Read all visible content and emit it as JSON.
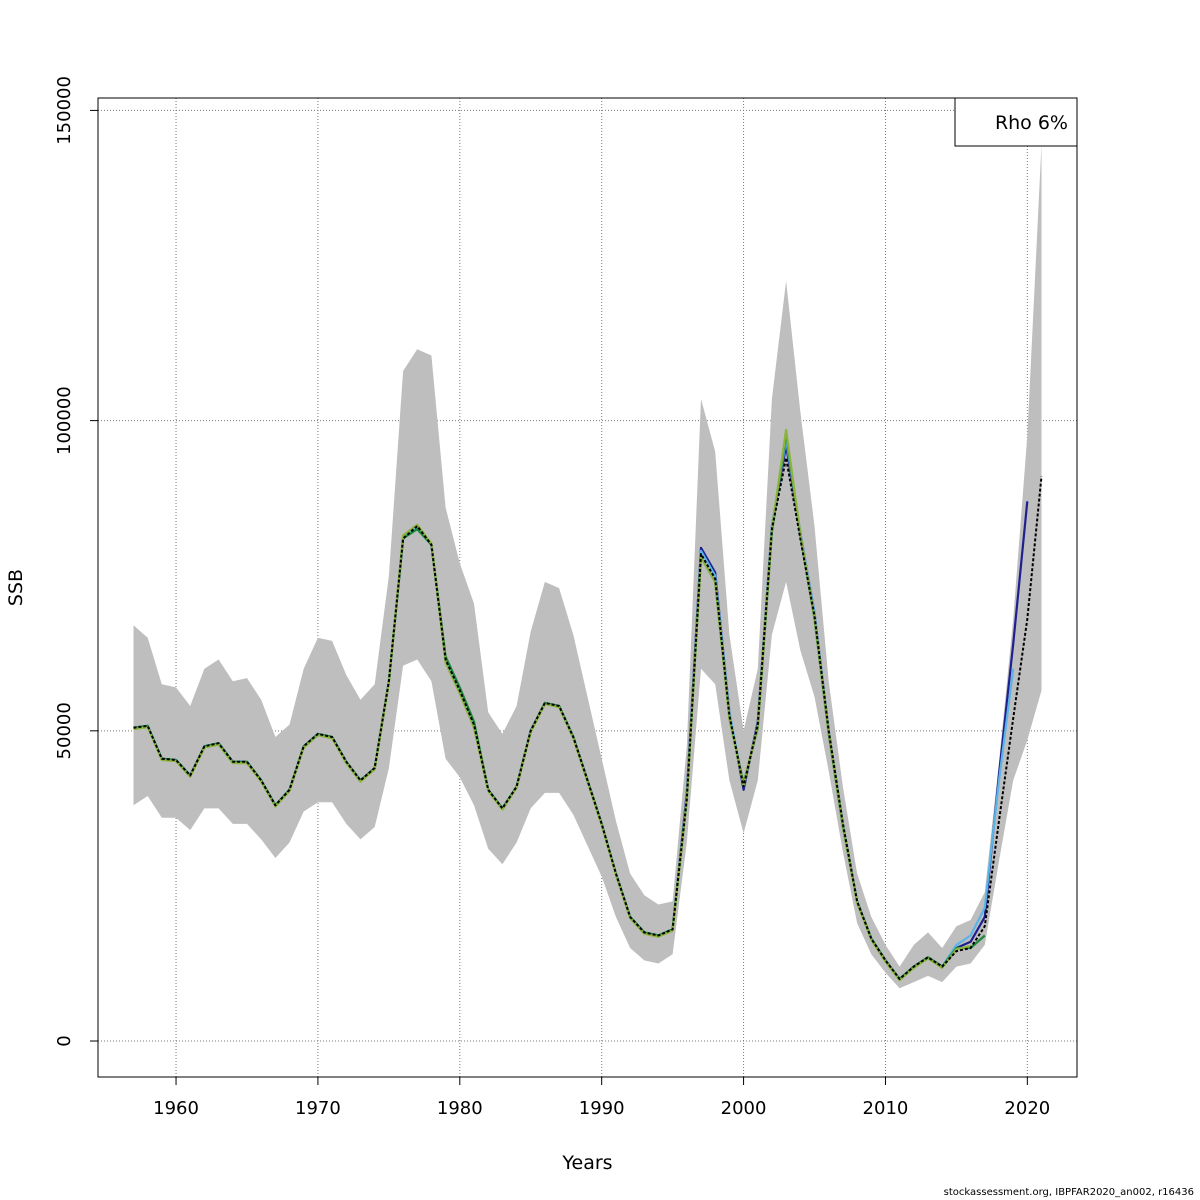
{
  "chart_data": {
    "type": "line",
    "title": "",
    "xlabel": "Years",
    "ylabel": "SSB",
    "xlim": [
      1954.5,
      2023.5
    ],
    "ylim": [
      -5800,
      152000
    ],
    "xticks": [
      1960,
      1970,
      1980,
      1990,
      2000,
      2010,
      2020
    ],
    "yticks": [
      0,
      50000,
      100000,
      150000
    ],
    "grid": true,
    "legend": {
      "position": "top-right",
      "text": "Rho 6%"
    },
    "band": {
      "x": [
        1957,
        1958,
        1959,
        1960,
        1961,
        1962,
        1963,
        1964,
        1965,
        1966,
        1967,
        1968,
        1969,
        1970,
        1971,
        1972,
        1973,
        1974,
        1975,
        1976,
        1977,
        1978,
        1979,
        1980,
        1981,
        1982,
        1983,
        1984,
        1985,
        1986,
        1987,
        1988,
        1989,
        1990,
        1991,
        1992,
        1993,
        1994,
        1995,
        1996,
        1997,
        1998,
        1999,
        2000,
        2001,
        2002,
        2003,
        2004,
        2005,
        2006,
        2007,
        2008,
        2009,
        2010,
        2011,
        2012,
        2013,
        2014,
        2015,
        2016,
        2017,
        2018,
        2019,
        2020,
        2021
      ],
      "upper": [
        67000,
        65000,
        57500,
        57000,
        54000,
        60000,
        61500,
        58000,
        58500,
        55000,
        49000,
        51000,
        60000,
        65000,
        64500,
        59000,
        55000,
        57500,
        75000,
        108000,
        111500,
        110500,
        86000,
        77000,
        70500,
        53000,
        49500,
        54000,
        66000,
        74000,
        73000,
        65500,
        55500,
        45500,
        35500,
        27000,
        23500,
        22000,
        22500,
        47500,
        103500,
        95000,
        65500,
        50000,
        60000,
        103500,
        122500,
        101500,
        83000,
        58000,
        41000,
        27000,
        20000,
        15500,
        12000,
        15500,
        17500,
        15000,
        18500,
        19500,
        24000,
        45000,
        68000,
        97500,
        144500
      ],
      "lower": [
        38000,
        39500,
        36000,
        36000,
        34000,
        37500,
        37500,
        35000,
        35000,
        32500,
        29500,
        32000,
        37000,
        38500,
        38500,
        35000,
        32500,
        34500,
        44000,
        60500,
        61500,
        58000,
        45500,
        42500,
        38000,
        31000,
        28500,
        32000,
        37500,
        40000,
        40000,
        36500,
        31500,
        26500,
        20000,
        15000,
        13000,
        12500,
        14000,
        32000,
        60000,
        57500,
        42000,
        33500,
        42000,
        65500,
        74000,
        63000,
        55500,
        43500,
        30500,
        19000,
        14000,
        11000,
        8500,
        9500,
        10500,
        9500,
        12000,
        12500,
        15500,
        29000,
        42000,
        48500,
        56500
      ]
    },
    "series": [
      {
        "name": "",
        "color": "#000000",
        "dashed": true,
        "x": [
          1957,
          1958,
          1959,
          1960,
          1961,
          1962,
          1963,
          1964,
          1965,
          1966,
          1967,
          1968,
          1969,
          1970,
          1971,
          1972,
          1973,
          1974,
          1975,
          1976,
          1977,
          1978,
          1979,
          1980,
          1981,
          1982,
          1983,
          1984,
          1985,
          1986,
          1987,
          1988,
          1989,
          1990,
          1991,
          1992,
          1993,
          1994,
          1995,
          1996,
          1997,
          1998,
          1999,
          2000,
          2001,
          2002,
          2003,
          2004,
          2005,
          2006,
          2007,
          2008,
          2009,
          2010,
          2011,
          2012,
          2013,
          2014,
          2015,
          2016,
          2017,
          2018,
          2019,
          2020,
          2021
        ],
        "y": [
          50500,
          50800,
          45500,
          45300,
          42800,
          47500,
          48000,
          45000,
          45000,
          42000,
          38000,
          40500,
          47500,
          49500,
          49000,
          45000,
          42000,
          44000,
          58000,
          81000,
          83000,
          80000,
          61500,
          56500,
          51000,
          40500,
          37500,
          41000,
          50000,
          54500,
          54000,
          49000,
          42000,
          35000,
          27000,
          20000,
          17500,
          17000,
          18000,
          39000,
          78500,
          74500,
          52500,
          41000,
          51000,
          82500,
          94000,
          81000,
          68500,
          50000,
          35000,
          22500,
          16500,
          13000,
          10000,
          12000,
          13500,
          12000,
          14500,
          15000,
          18500,
          35500,
          52000,
          68000,
          91000
        ]
      },
      {
        "name": "",
        "color": "#1f1f8f",
        "dashed": false,
        "x": [
          1957,
          1958,
          1959,
          1960,
          1961,
          1962,
          1963,
          1964,
          1965,
          1966,
          1967,
          1968,
          1969,
          1970,
          1971,
          1972,
          1973,
          1974,
          1975,
          1976,
          1977,
          1978,
          1979,
          1980,
          1981,
          1982,
          1983,
          1984,
          1985,
          1986,
          1987,
          1988,
          1989,
          1990,
          1991,
          1992,
          1993,
          1994,
          1995,
          1996,
          1997,
          1998,
          1999,
          2000,
          2001,
          2002,
          2003,
          2004,
          2005,
          2006,
          2007,
          2008,
          2009,
          2010,
          2011,
          2012,
          2013,
          2014,
          2015,
          2016,
          2017,
          2018,
          2019,
          2020
        ],
        "y": [
          50500,
          50800,
          45500,
          45300,
          42800,
          47500,
          48000,
          45000,
          45000,
          42000,
          38000,
          40500,
          47500,
          49500,
          49000,
          45000,
          42000,
          44000,
          58000,
          81000,
          83000,
          80000,
          61500,
          56500,
          51000,
          40500,
          37500,
          41000,
          50000,
          54500,
          54000,
          49000,
          42000,
          35000,
          27000,
          20000,
          17500,
          17000,
          18000,
          40000,
          79500,
          75500,
          53000,
          40500,
          51500,
          83000,
          96000,
          82000,
          69000,
          50000,
          35000,
          22500,
          16500,
          13000,
          10000,
          12000,
          13500,
          12000,
          15000,
          16000,
          20000,
          43000,
          64000,
          87000
        ]
      },
      {
        "name": "",
        "color": "#5ab4e8",
        "dashed": false,
        "x": [
          1957,
          1958,
          1959,
          1960,
          1961,
          1962,
          1963,
          1964,
          1965,
          1966,
          1967,
          1968,
          1969,
          1970,
          1971,
          1972,
          1973,
          1974,
          1975,
          1976,
          1977,
          1978,
          1979,
          1980,
          1981,
          1982,
          1983,
          1984,
          1985,
          1986,
          1987,
          1988,
          1989,
          1990,
          1991,
          1992,
          1993,
          1994,
          1995,
          1996,
          1997,
          1998,
          1999,
          2000,
          2001,
          2002,
          2003,
          2004,
          2005,
          2006,
          2007,
          2008,
          2009,
          2010,
          2011,
          2012,
          2013,
          2014,
          2015,
          2016,
          2017,
          2018,
          2019
        ],
        "y": [
          50500,
          50800,
          45500,
          45300,
          42800,
          47500,
          48000,
          45000,
          45000,
          42000,
          38000,
          40500,
          47500,
          49500,
          49000,
          45000,
          42000,
          44000,
          58000,
          81000,
          83000,
          80000,
          61500,
          56500,
          51000,
          40500,
          37500,
          41000,
          50000,
          54500,
          54000,
          49000,
          42000,
          35000,
          27000,
          20000,
          17500,
          17000,
          18000,
          39500,
          79000,
          75000,
          53000,
          41000,
          51000,
          83000,
          97000,
          82000,
          69000,
          50000,
          35000,
          22500,
          16500,
          13000,
          10000,
          12000,
          13500,
          12000,
          15500,
          17000,
          21500,
          42000,
          60000
        ]
      },
      {
        "name": "",
        "color": "#1a8a3a",
        "dashed": false,
        "x": [
          1957,
          1958,
          1959,
          1960,
          1961,
          1962,
          1963,
          1964,
          1965,
          1966,
          1967,
          1968,
          1969,
          1970,
          1971,
          1972,
          1973,
          1974,
          1975,
          1976,
          1977,
          1978,
          1979,
          1980,
          1981,
          1982,
          1983,
          1984,
          1985,
          1986,
          1987,
          1988,
          1989,
          1990,
          1991,
          1992,
          1993,
          1994,
          1995,
          1996,
          1997,
          1998,
          1999,
          2000,
          2001,
          2002,
          2003,
          2004,
          2005,
          2006,
          2007,
          2008,
          2009,
          2010,
          2011,
          2012,
          2013,
          2014,
          2015,
          2016,
          2017
        ],
        "y": [
          50500,
          50800,
          45500,
          45300,
          42800,
          47500,
          48000,
          45000,
          45000,
          42000,
          38000,
          40500,
          47500,
          49500,
          49000,
          45000,
          42000,
          44000,
          58000,
          81000,
          82500,
          80000,
          62000,
          57000,
          51500,
          40500,
          37500,
          41000,
          50000,
          54500,
          54000,
          49000,
          42000,
          35000,
          27000,
          20000,
          17500,
          17000,
          18000,
          39000,
          78000,
          74000,
          52000,
          41500,
          50500,
          82000,
          98000,
          81500,
          68000,
          49500,
          34500,
          22500,
          16500,
          13000,
          10000,
          12000,
          13500,
          12000,
          15000,
          15000,
          17000
        ]
      },
      {
        "name": "",
        "color": "#8cb33a",
        "dashed": false,
        "x": [
          1957,
          1958,
          1959,
          1960,
          1961,
          1962,
          1963,
          1964,
          1965,
          1966,
          1967,
          1968,
          1969,
          1970,
          1971,
          1972,
          1973,
          1974,
          1975,
          1976,
          1977,
          1978,
          1979,
          1980,
          1981,
          1982,
          1983,
          1984,
          1985,
          1986,
          1987,
          1988,
          1989,
          1990,
          1991,
          1992,
          1993,
          1994,
          1995,
          1996,
          1997,
          1998,
          1999,
          2000,
          2001,
          2002,
          2003,
          2004,
          2005,
          2006,
          2007,
          2008,
          2009,
          2010,
          2011,
          2012,
          2013,
          2014,
          2015,
          2016
        ],
        "y": [
          50300,
          50600,
          45300,
          45100,
          42600,
          47300,
          47800,
          44800,
          44800,
          41800,
          37800,
          40300,
          47300,
          49300,
          48800,
          44800,
          41800,
          43800,
          57800,
          81500,
          83200,
          80200,
          61000,
          56000,
          50500,
          40300,
          37300,
          40800,
          49800,
          54300,
          53800,
          48800,
          41800,
          34800,
          26800,
          19800,
          17300,
          16800,
          17800,
          38800,
          78000,
          74000,
          52000,
          41200,
          50800,
          82500,
          98500,
          81800,
          68200,
          49800,
          34800,
          22300,
          16300,
          12800,
          9800,
          11800,
          13300,
          11800,
          14800,
          15300
        ]
      }
    ]
  },
  "footer_text": "stockassessment.org, IBPFAR2020_an002, r16436"
}
